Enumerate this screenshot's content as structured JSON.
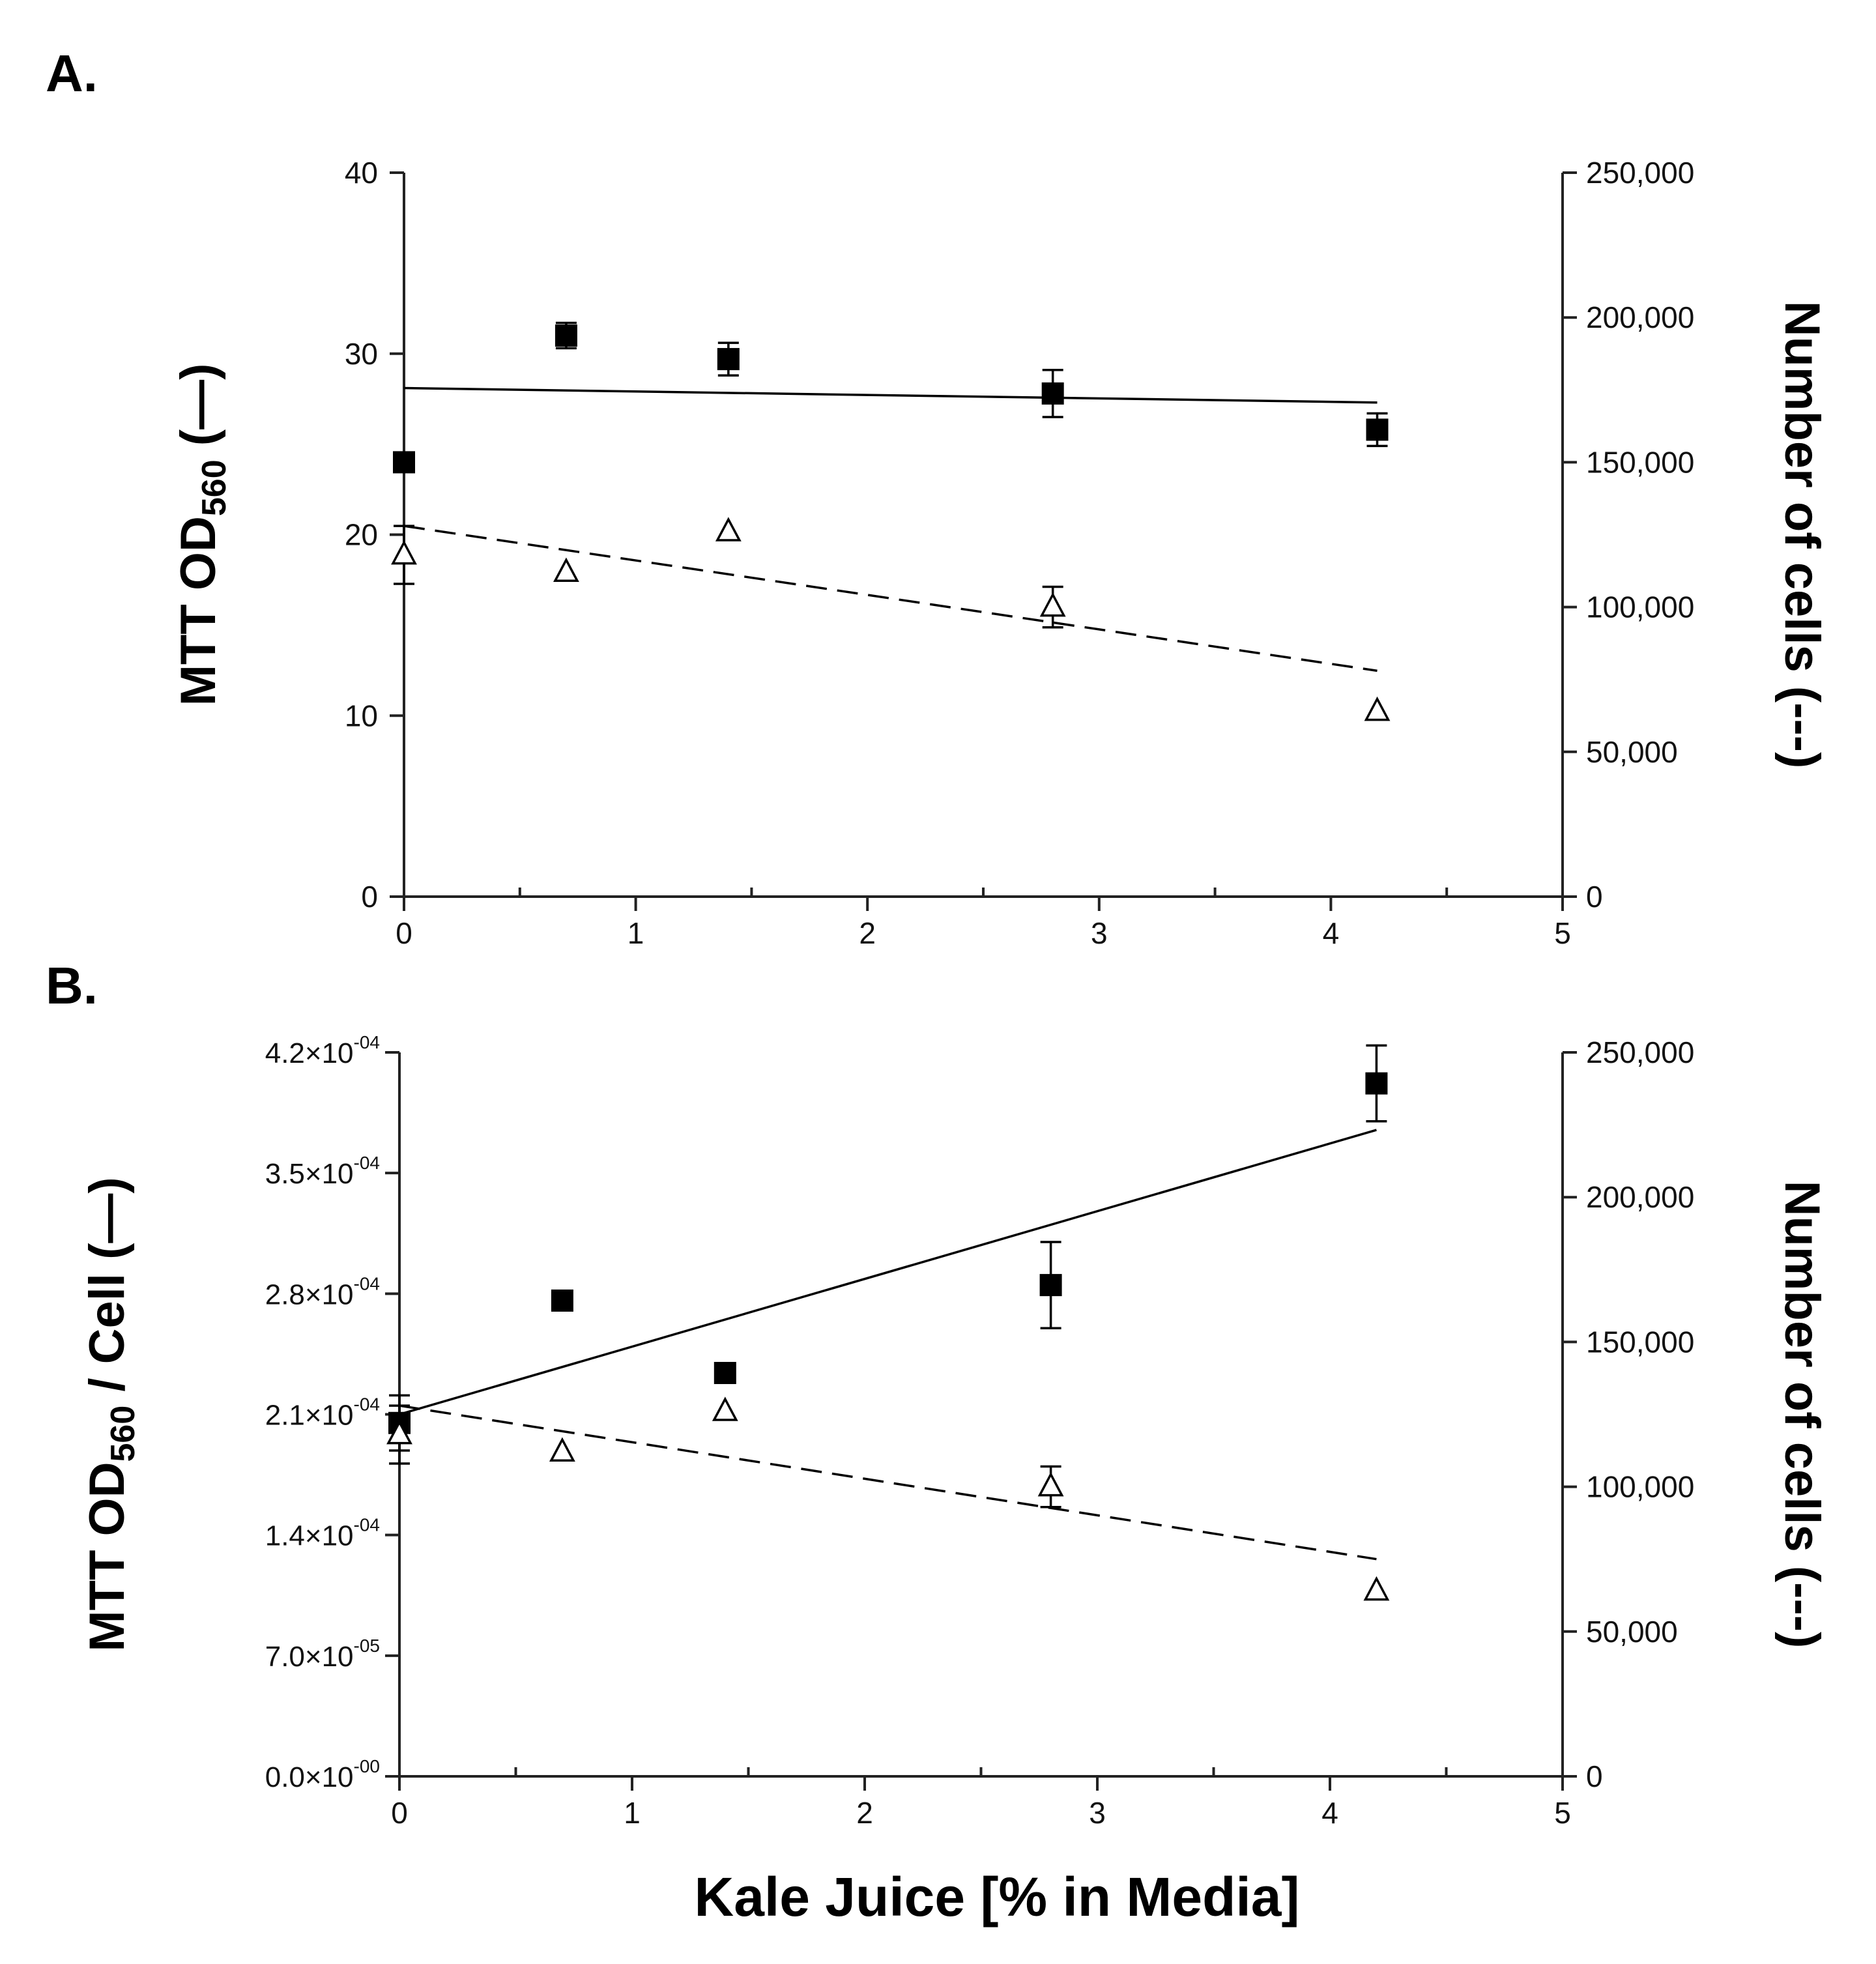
{
  "figure": {
    "x_axis_title": "Kale Juice [% in Media]"
  },
  "chart_data": [
    {
      "type": "scatter",
      "panel_label": "A.",
      "xlabel": "Kale Juice [% in Media]",
      "ylabel_left": {
        "main": "MTT OD",
        "sub": "560",
        "suffix": " (—)"
      },
      "ylabel_right": "Number of cells (---)",
      "xlim": [
        0,
        5
      ],
      "ylim_left": [
        0,
        40
      ],
      "ylim_right": [
        0,
        250000
      ],
      "x_ticks": [
        0,
        1,
        2,
        3,
        4,
        5
      ],
      "x_tick_labels": [
        "0",
        "1",
        "2",
        "3",
        "4",
        "5"
      ],
      "y_left_ticks": [
        0,
        10,
        20,
        30,
        40
      ],
      "y_left_tick_labels": [
        "0",
        "10",
        "20",
        "30",
        "40"
      ],
      "y_right_ticks": [
        0,
        50000,
        100000,
        150000,
        200000,
        250000
      ],
      "y_right_tick_labels": [
        "0",
        "50,000",
        "100,000",
        "150,000",
        "200,000",
        "250,000"
      ],
      "series": [
        {
          "name": "MTT OD560",
          "axis": "left",
          "marker": "filled-square",
          "x": [
            0,
            0.7,
            1.4,
            2.8,
            4.2
          ],
          "y": [
            24.0,
            31.0,
            29.7,
            27.8,
            25.8
          ],
          "err": [
            0,
            0.7,
            0.9,
            1.3,
            0.9
          ],
          "fit": {
            "style": "solid",
            "x": [
              0,
              4.2
            ],
            "y": [
              28.1,
              27.3
            ]
          }
        },
        {
          "name": "Number of cells",
          "axis": "right",
          "marker": "open-triangle",
          "x": [
            0,
            0.7,
            1.4,
            2.8,
            4.2
          ],
          "y": [
            118000,
            112000,
            126000,
            100000,
            64000
          ],
          "err": [
            10000,
            0,
            0,
            7000,
            0
          ],
          "fit": {
            "style": "dashed",
            "x": [
              0,
              4.2
            ],
            "y": [
              128000,
              78000
            ]
          }
        }
      ]
    },
    {
      "type": "scatter",
      "panel_label": "B.",
      "xlabel": "Kale Juice [% in Media]",
      "ylabel_left": {
        "main": "MTT OD",
        "sub": "560",
        "suffix": " / Cell (—)"
      },
      "ylabel_right": "Number of cells (---)",
      "xlim": [
        0,
        5
      ],
      "ylim_left": [
        0,
        0.00042
      ],
      "ylim_right": [
        0,
        250000
      ],
      "x_ticks": [
        0,
        1,
        2,
        3,
        4,
        5
      ],
      "x_tick_labels": [
        "0",
        "1",
        "2",
        "3",
        "4",
        "5"
      ],
      "y_left_ticks": [
        0,
        7e-05,
        0.00014,
        0.00021,
        0.00028,
        0.00035,
        0.00042
      ],
      "y_left_tick_labels": [
        {
          "mantissa": "0.0×10",
          "exp": "-00"
        },
        {
          "mantissa": "7.0×10",
          "exp": "-05"
        },
        {
          "mantissa": "1.4×10",
          "exp": "-04"
        },
        {
          "mantissa": "2.1×10",
          "exp": "-04"
        },
        {
          "mantissa": "2.8×10",
          "exp": "-04"
        },
        {
          "mantissa": "3.5×10",
          "exp": "-04"
        },
        {
          "mantissa": "4.2×10",
          "exp": "-04"
        }
      ],
      "y_right_ticks": [
        0,
        50000,
        100000,
        150000,
        200000,
        250000
      ],
      "y_right_tick_labels": [
        "0",
        "50,000",
        "100,000",
        "150,000",
        "200,000",
        "250,000"
      ],
      "series": [
        {
          "name": "MTT OD560 / Cell",
          "axis": "left",
          "marker": "filled-square",
          "x": [
            0,
            0.7,
            1.4,
            2.8,
            4.2
          ],
          "y": [
            0.000205,
            0.000276,
            0.000234,
            0.000285,
            0.000402
          ],
          "err": [
            1.6e-05,
            5e-06,
            0,
            2.5e-05,
            2.2e-05
          ],
          "fit": {
            "style": "solid",
            "x": [
              0,
              4.2
            ],
            "y": [
              0.00021,
              0.000375
            ]
          }
        },
        {
          "name": "Number of cells",
          "axis": "right",
          "marker": "open-triangle",
          "x": [
            0,
            0.7,
            1.4,
            2.8,
            4.2
          ],
          "y": [
            118000,
            112000,
            126000,
            100000,
            64000
          ],
          "err": [
            10000,
            0,
            0,
            7000,
            0
          ],
          "fit": {
            "style": "dashed",
            "x": [
              0,
              4.2
            ],
            "y": [
              128000,
              75000
            ]
          }
        }
      ]
    }
  ]
}
